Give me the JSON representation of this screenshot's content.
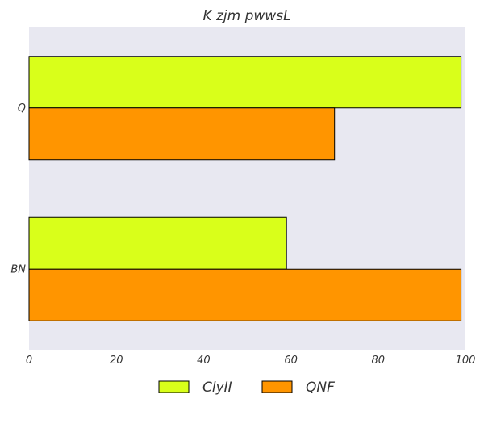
{
  "chart_data": {
    "type": "bar",
    "orientation": "horizontal",
    "title": "K zjm pwwsL",
    "xlabel": "",
    "ylabel": "",
    "categories": [
      "Q",
      "BN"
    ],
    "series": [
      {
        "name": "ClyII",
        "values": [
          99,
          59
        ],
        "color": "#d9ff1a"
      },
      {
        "name": "QNF",
        "values": [
          70,
          99
        ],
        "color": "#ff9500"
      }
    ],
    "xlim": [
      0,
      100
    ],
    "xticks": [
      "0",
      "20",
      "40",
      "60",
      "80",
      "100"
    ],
    "grid": false,
    "plot_background": "#e8e8f1",
    "legend": {
      "position": "bottom-center",
      "items": [
        "ClyII",
        "QNF"
      ]
    }
  }
}
